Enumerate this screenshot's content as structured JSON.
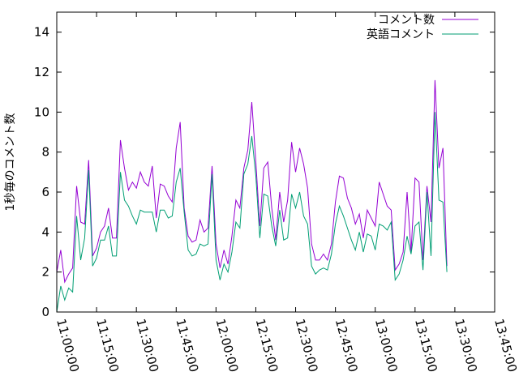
{
  "chart_data": {
    "type": "line",
    "title": "",
    "xlabel": "",
    "ylabel": "1秒毎のコメント数",
    "xlim": [
      "11:00:00",
      "13:45:00"
    ],
    "ylim": [
      0,
      15
    ],
    "x_ticks": [
      "11:00:00",
      "11:15:00",
      "11:30:00",
      "11:45:00",
      "12:00:00",
      "12:15:00",
      "12:30:00",
      "12:45:00",
      "13:00:00",
      "13:15:00",
      "13:30:00",
      "13:45:00"
    ],
    "y_ticks": [
      "0",
      "2",
      "4",
      "6",
      "8",
      "10",
      "12",
      "14"
    ],
    "grid": false,
    "legend_position": "top-right",
    "series": [
      {
        "name": "コメント数",
        "color": "#9400d3",
        "points": [
          [
            "11:00:00",
            2.0
          ],
          [
            "11:01:30",
            3.1
          ],
          [
            "11:03:00",
            1.5
          ],
          [
            "11:04:30",
            1.9
          ],
          [
            "11:06:00",
            2.2
          ],
          [
            "11:07:30",
            6.3
          ],
          [
            "11:09:00",
            4.5
          ],
          [
            "11:10:30",
            4.4
          ],
          [
            "11:12:00",
            7.6
          ],
          [
            "11:13:30",
            2.8
          ],
          [
            "11:15:00",
            3.2
          ],
          [
            "11:16:30",
            4.0
          ],
          [
            "11:18:00",
            4.3
          ],
          [
            "11:19:30",
            5.2
          ],
          [
            "11:21:00",
            3.7
          ],
          [
            "11:22:30",
            3.7
          ],
          [
            "11:24:00",
            8.6
          ],
          [
            "11:25:30",
            7.2
          ],
          [
            "11:27:00",
            6.1
          ],
          [
            "11:28:30",
            6.5
          ],
          [
            "11:30:00",
            6.2
          ],
          [
            "11:31:30",
            7.0
          ],
          [
            "11:33:00",
            6.5
          ],
          [
            "11:34:30",
            6.3
          ],
          [
            "11:36:00",
            7.3
          ],
          [
            "11:37:30",
            4.7
          ],
          [
            "11:39:00",
            6.4
          ],
          [
            "11:40:30",
            6.3
          ],
          [
            "11:42:00",
            5.8
          ],
          [
            "11:43:30",
            5.5
          ],
          [
            "11:45:00",
            8.2
          ],
          [
            "11:46:30",
            9.5
          ],
          [
            "11:48:00",
            5.2
          ],
          [
            "11:49:30",
            3.8
          ],
          [
            "11:51:00",
            3.5
          ],
          [
            "11:52:30",
            3.6
          ],
          [
            "11:54:00",
            4.6
          ],
          [
            "11:55:30",
            4.0
          ],
          [
            "11:57:00",
            4.2
          ],
          [
            "11:58:30",
            7.3
          ],
          [
            "12:00:00",
            3.4
          ],
          [
            "12:01:30",
            2.2
          ],
          [
            "12:03:00",
            3.1
          ],
          [
            "12:04:30",
            2.4
          ],
          [
            "12:06:00",
            3.8
          ],
          [
            "12:07:30",
            5.6
          ],
          [
            "12:09:00",
            5.2
          ],
          [
            "12:10:30",
            7.2
          ],
          [
            "12:12:00",
            8.1
          ],
          [
            "12:13:30",
            10.5
          ],
          [
            "12:15:00",
            7.5
          ],
          [
            "12:16:30",
            4.3
          ],
          [
            "12:18:00",
            7.2
          ],
          [
            "12:19:30",
            7.5
          ],
          [
            "12:21:00",
            5.2
          ],
          [
            "12:22:30",
            3.6
          ],
          [
            "12:24:00",
            6.0
          ],
          [
            "12:25:30",
            4.5
          ],
          [
            "12:27:00",
            5.6
          ],
          [
            "12:28:30",
            8.5
          ],
          [
            "12:30:00",
            7.0
          ],
          [
            "12:31:30",
            8.2
          ],
          [
            "12:33:00",
            7.4
          ],
          [
            "12:34:30",
            6.2
          ],
          [
            "12:36:00",
            3.4
          ],
          [
            "12:37:30",
            2.6
          ],
          [
            "12:39:00",
            2.6
          ],
          [
            "12:40:30",
            2.9
          ],
          [
            "12:42:00",
            2.6
          ],
          [
            "12:43:30",
            3.4
          ],
          [
            "12:45:00",
            5.5
          ],
          [
            "12:46:30",
            6.8
          ],
          [
            "12:48:00",
            6.7
          ],
          [
            "12:49:30",
            5.7
          ],
          [
            "12:51:00",
            5.2
          ],
          [
            "12:52:30",
            4.4
          ],
          [
            "12:54:00",
            4.9
          ],
          [
            "12:55:30",
            3.7
          ],
          [
            "12:57:00",
            5.1
          ],
          [
            "12:58:30",
            4.7
          ],
          [
            "13:00:00",
            4.3
          ],
          [
            "13:01:30",
            6.5
          ],
          [
            "13:03:00",
            5.9
          ],
          [
            "13:04:30",
            5.3
          ],
          [
            "13:06:00",
            5.1
          ],
          [
            "13:07:30",
            2.1
          ],
          [
            "13:09:00",
            2.4
          ],
          [
            "13:10:30",
            3.0
          ],
          [
            "13:12:00",
            6.0
          ],
          [
            "13:13:30",
            3.0
          ],
          [
            "13:15:00",
            6.7
          ],
          [
            "13:16:30",
            6.5
          ],
          [
            "13:18:00",
            2.6
          ],
          [
            "13:19:30",
            6.3
          ],
          [
            "13:21:00",
            4.5
          ],
          [
            "13:22:30",
            11.6
          ],
          [
            "13:24:00",
            7.2
          ],
          [
            "13:25:30",
            8.2
          ],
          [
            "13:27:00",
            2.3
          ]
        ]
      },
      {
        "name": "英語コメント",
        "color": "#009e73",
        "points": [
          [
            "11:00:00",
            0.0
          ],
          [
            "11:01:30",
            1.3
          ],
          [
            "11:03:00",
            0.6
          ],
          [
            "11:04:30",
            1.2
          ],
          [
            "11:06:00",
            1.0
          ],
          [
            "11:07:30",
            4.8
          ],
          [
            "11:09:00",
            2.6
          ],
          [
            "11:10:30",
            3.7
          ],
          [
            "11:12:00",
            7.1
          ],
          [
            "11:13:30",
            2.3
          ],
          [
            "11:15:00",
            2.7
          ],
          [
            "11:16:30",
            3.6
          ],
          [
            "11:18:00",
            3.6
          ],
          [
            "11:19:30",
            4.3
          ],
          [
            "11:21:00",
            2.8
          ],
          [
            "11:22:30",
            2.8
          ],
          [
            "11:24:00",
            7.0
          ],
          [
            "11:25:30",
            5.6
          ],
          [
            "11:27:00",
            5.3
          ],
          [
            "11:28:30",
            4.8
          ],
          [
            "11:30:00",
            4.4
          ],
          [
            "11:31:30",
            5.1
          ],
          [
            "11:33:00",
            5.0
          ],
          [
            "11:34:30",
            5.0
          ],
          [
            "11:36:00",
            5.0
          ],
          [
            "11:37:30",
            4.0
          ],
          [
            "11:39:00",
            5.1
          ],
          [
            "11:40:30",
            5.1
          ],
          [
            "11:42:00",
            4.7
          ],
          [
            "11:43:30",
            4.8
          ],
          [
            "11:45:00",
            6.5
          ],
          [
            "11:46:30",
            7.2
          ],
          [
            "11:48:00",
            5.0
          ],
          [
            "11:49:30",
            3.1
          ],
          [
            "11:51:00",
            2.8
          ],
          [
            "11:52:30",
            2.9
          ],
          [
            "11:54:00",
            3.4
          ],
          [
            "11:55:30",
            3.3
          ],
          [
            "11:57:00",
            3.4
          ],
          [
            "11:58:30",
            6.9
          ],
          [
            "12:00:00",
            2.6
          ],
          [
            "12:01:30",
            1.6
          ],
          [
            "12:03:00",
            2.4
          ],
          [
            "12:04:30",
            2.0
          ],
          [
            "12:06:00",
            3.0
          ],
          [
            "12:07:30",
            4.5
          ],
          [
            "12:09:00",
            4.2
          ],
          [
            "12:10:30",
            6.9
          ],
          [
            "12:12:00",
            7.4
          ],
          [
            "12:13:30",
            8.8
          ],
          [
            "12:15:00",
            6.8
          ],
          [
            "12:16:30",
            3.7
          ],
          [
            "12:18:00",
            5.9
          ],
          [
            "12:19:30",
            5.8
          ],
          [
            "12:21:00",
            4.3
          ],
          [
            "12:22:30",
            3.3
          ],
          [
            "12:24:00",
            5.1
          ],
          [
            "12:25:30",
            3.6
          ],
          [
            "12:27:00",
            3.7
          ],
          [
            "12:28:30",
            5.9
          ],
          [
            "12:30:00",
            5.2
          ],
          [
            "12:31:30",
            6.0
          ],
          [
            "12:33:00",
            4.8
          ],
          [
            "12:34:30",
            4.4
          ],
          [
            "12:36:00",
            2.3
          ],
          [
            "12:37:30",
            1.9
          ],
          [
            "12:39:00",
            2.1
          ],
          [
            "12:40:30",
            2.2
          ],
          [
            "12:42:00",
            2.1
          ],
          [
            "12:43:30",
            2.9
          ],
          [
            "12:45:00",
            4.4
          ],
          [
            "12:46:30",
            5.3
          ],
          [
            "12:48:00",
            4.8
          ],
          [
            "12:49:30",
            4.2
          ],
          [
            "12:51:00",
            3.6
          ],
          [
            "12:52:30",
            3.1
          ],
          [
            "12:54:00",
            4.0
          ],
          [
            "12:55:30",
            3.0
          ],
          [
            "12:57:00",
            3.9
          ],
          [
            "12:58:30",
            3.8
          ],
          [
            "13:00:00",
            3.1
          ],
          [
            "13:01:30",
            4.4
          ],
          [
            "13:03:00",
            4.3
          ],
          [
            "13:04:30",
            4.1
          ],
          [
            "13:06:00",
            4.5
          ],
          [
            "13:07:30",
            1.6
          ],
          [
            "13:09:00",
            1.9
          ],
          [
            "13:10:30",
            2.6
          ],
          [
            "13:12:00",
            3.8
          ],
          [
            "13:13:30",
            2.9
          ],
          [
            "13:15:00",
            4.3
          ],
          [
            "13:16:30",
            4.5
          ],
          [
            "13:18:00",
            2.1
          ],
          [
            "13:19:30",
            6.0
          ],
          [
            "13:21:00",
            2.8
          ],
          [
            "13:22:30",
            10.0
          ],
          [
            "13:24:00",
            5.6
          ],
          [
            "13:25:30",
            5.5
          ],
          [
            "13:27:00",
            2.0
          ]
        ]
      }
    ]
  }
}
